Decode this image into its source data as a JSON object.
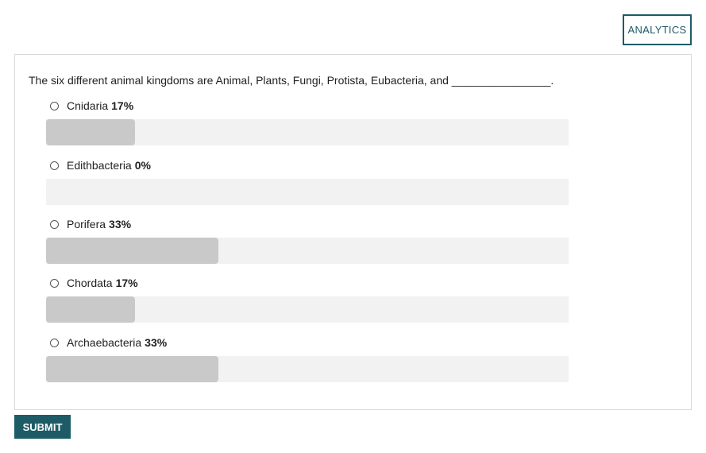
{
  "header": {
    "analytics_label": "ANALYTICS"
  },
  "question": {
    "text": "The six different animal kingdoms are Animal, Plants, Fungi, Protista, Eubacteria, and ________________.",
    "options": [
      {
        "label": "Cnidaria",
        "percent_text": "17%",
        "percent": 17
      },
      {
        "label": "Edithbacteria",
        "percent_text": "0%",
        "percent": 0
      },
      {
        "label": "Porifera",
        "percent_text": "33%",
        "percent": 33
      },
      {
        "label": "Chordata",
        "percent_text": "17%",
        "percent": 17
      },
      {
        "label": "Archaebacteria",
        "percent_text": "33%",
        "percent": 33
      }
    ]
  },
  "footer": {
    "submit_label": "SUBMIT"
  },
  "colors": {
    "accent": "#1d5c66",
    "bar_track": "#f2f2f2",
    "bar_fill": "#c9c9c9"
  }
}
